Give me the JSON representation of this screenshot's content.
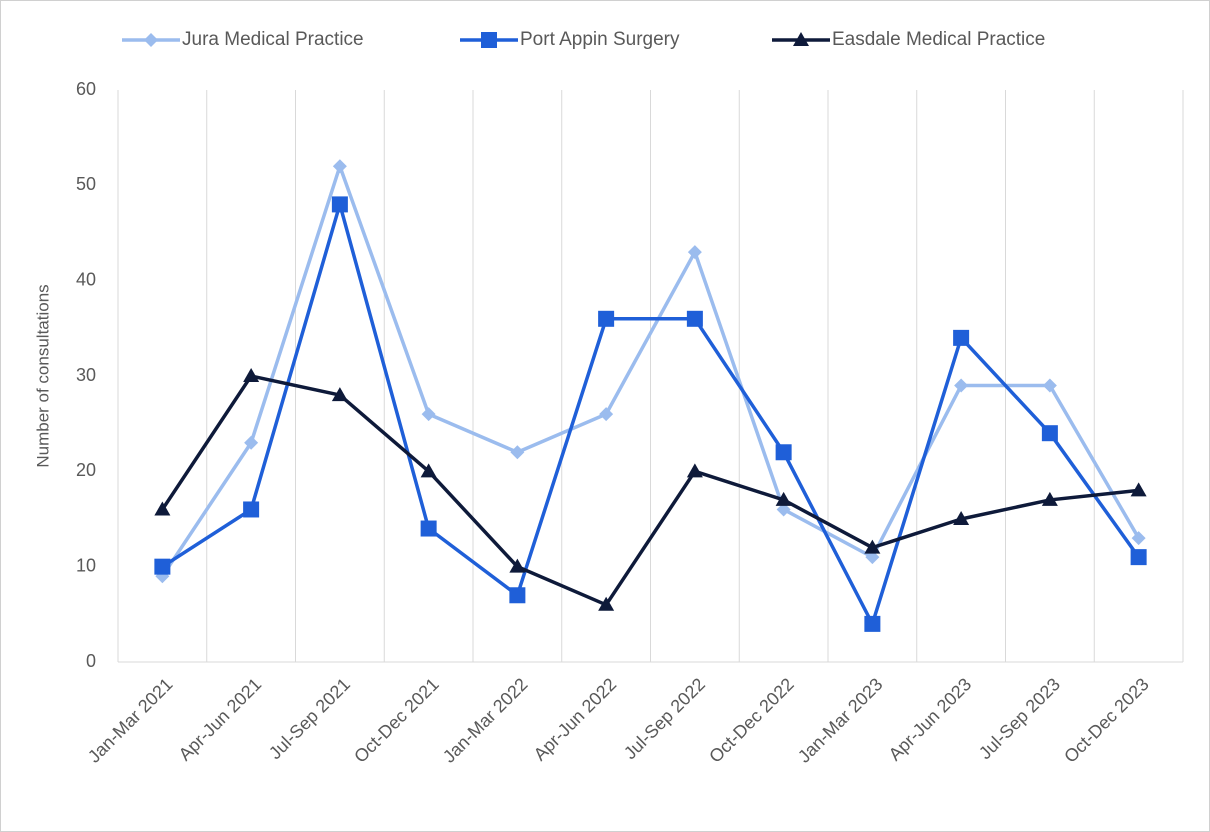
{
  "chart_data": {
    "type": "line",
    "y_label": "Number of consultations",
    "categories": [
      "Jan-Mar 2021",
      "Apr-Jun 2021",
      "Jul-Sep 2021",
      "Oct-Dec 2021",
      "Jan-Mar 2022",
      "Apr-Jun 2022",
      "Jul-Sep 2022",
      "Oct-Dec 2022",
      "Jan-Mar 2023",
      "Apr-Jun 2023",
      "Jul-Sep 2023",
      "Oct-Dec 2023"
    ],
    "series": [
      {
        "name": "Jura Medical Practice",
        "color": "#9bbcee",
        "marker": "diamond",
        "values": [
          9,
          23,
          52,
          26,
          22,
          26,
          43,
          16,
          11,
          29,
          29,
          13
        ]
      },
      {
        "name": "Port Appin Surgery",
        "color": "#1f5fd8",
        "marker": "square",
        "values": [
          10,
          16,
          48,
          14,
          7,
          36,
          36,
          22,
          4,
          34,
          24,
          11
        ]
      },
      {
        "name": "Easdale Medical Practice",
        "color": "#0e1a3a",
        "marker": "triangle",
        "values": [
          16,
          30,
          28,
          20,
          10,
          6,
          20,
          17,
          12,
          15,
          17,
          18
        ]
      }
    ],
    "ylim": [
      0,
      60
    ],
    "yticks": [
      0,
      10,
      20,
      30,
      40,
      50,
      60
    ],
    "grid": true,
    "legend": "top"
  }
}
